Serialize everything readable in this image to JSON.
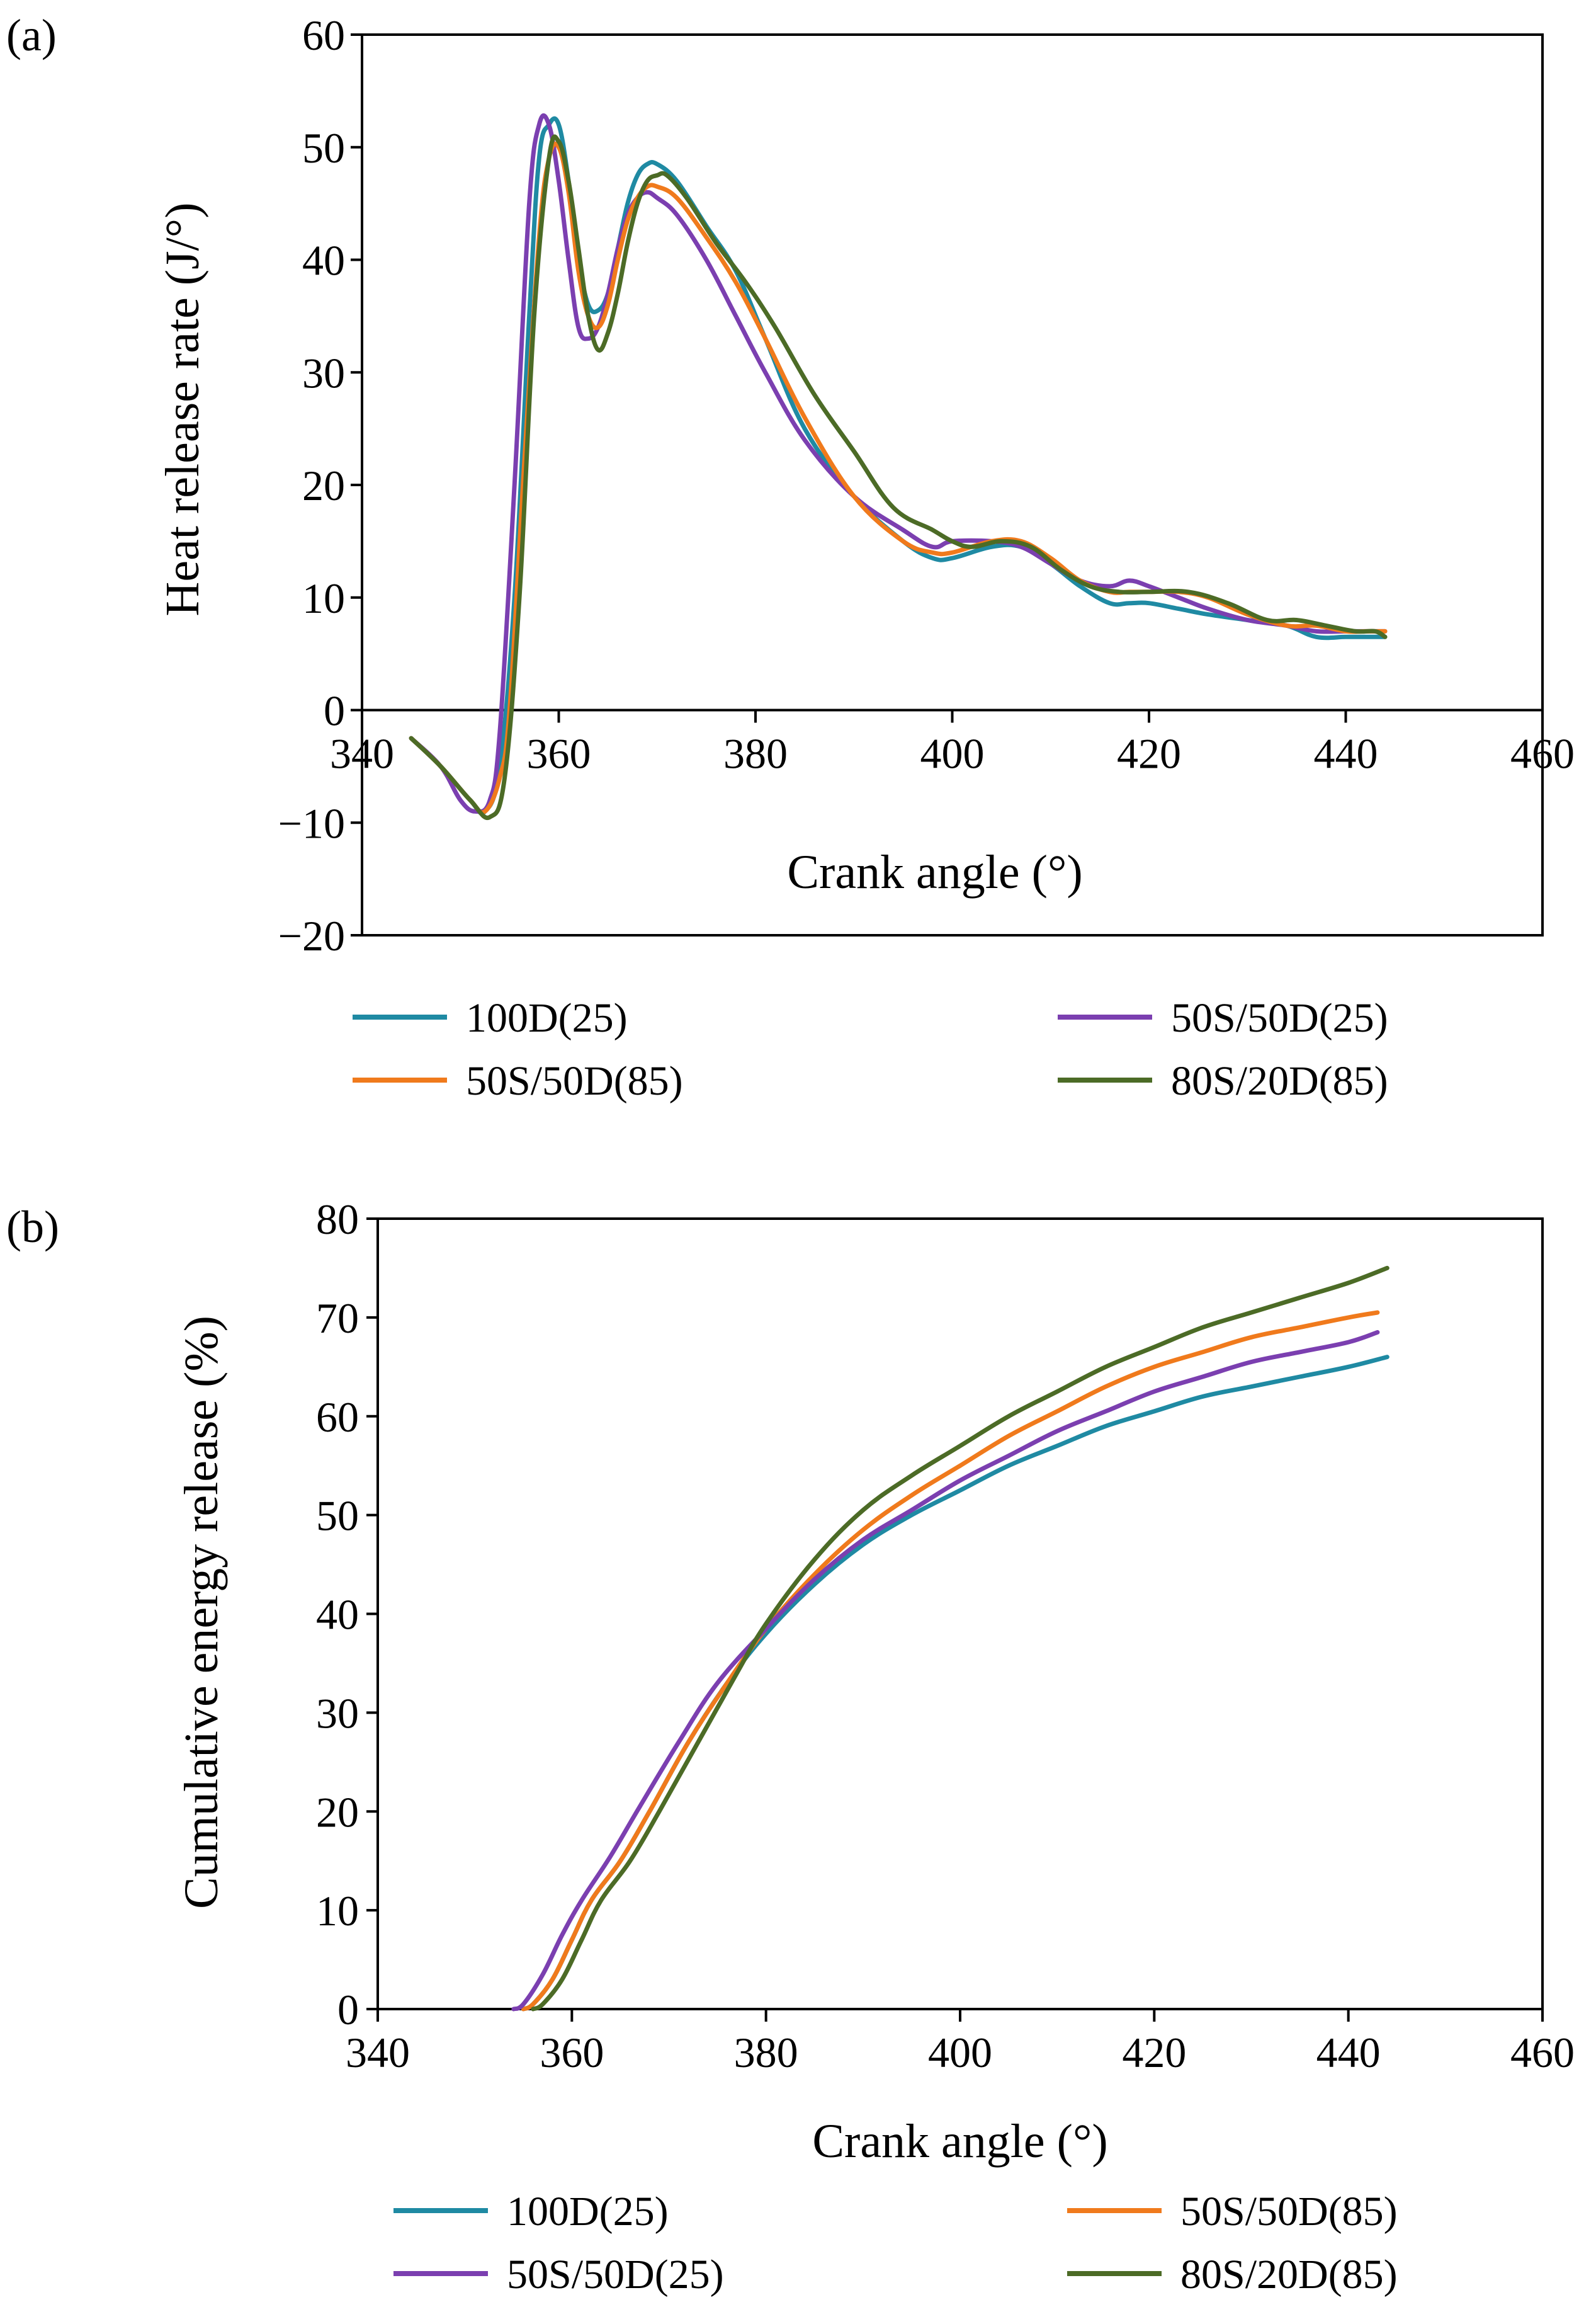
{
  "colors": {
    "100D(25)": "#1f8aa3",
    "50S/50D(25)": "#7b3fb0",
    "50S/50D(85)": "#f07a1c",
    "80S/20D(85)": "#4c6b26"
  },
  "chart_data": [
    {
      "panel_label": "(a)",
      "type": "line",
      "title": "",
      "xlabel": "Crank angle (°)",
      "ylabel": "Heat release rate (J/°)",
      "xlim": [
        340,
        460
      ],
      "ylim": [
        -20,
        60
      ],
      "x_ticks": [
        340,
        360,
        380,
        400,
        420,
        440,
        460
      ],
      "y_ticks": [
        -20,
        -10,
        0,
        10,
        20,
        30,
        40,
        50,
        60
      ],
      "x_tick_labels": [
        "340",
        "360",
        "380",
        "400",
        "420",
        "440",
        "460"
      ],
      "y_tick_labels": [
        "−20",
        "−10",
        "0",
        "10",
        "20",
        "30",
        "40",
        "50",
        "60"
      ],
      "grid": false,
      "legend": {
        "position": "below",
        "entries": [
          "100D(25)",
          "50S/50D(25)",
          "50S/50D(85)",
          "80S/20D(85)"
        ]
      },
      "series": [
        {
          "name": "100D(25)",
          "x": [
            345,
            348,
            351,
            352.5,
            354,
            355.5,
            357,
            358,
            359,
            360,
            361,
            362,
            363,
            364,
            365,
            366,
            367,
            368,
            369,
            370,
            372,
            375,
            378,
            381,
            385,
            390,
            395,
            398,
            400,
            404,
            407,
            410,
            413,
            416,
            418,
            420,
            423,
            426,
            430,
            434,
            437,
            440,
            442,
            444
          ],
          "y": [
            -2.5,
            -5,
            -8,
            -9,
            -5,
            10,
            35,
            49,
            52,
            52,
            47,
            40,
            36,
            35.5,
            37,
            41,
            45,
            47.5,
            48.5,
            48.5,
            47,
            43,
            39,
            33,
            25,
            19,
            15,
            13.5,
            13.5,
            14.5,
            14.5,
            13,
            11,
            9.5,
            9.5,
            9.5,
            9,
            8.5,
            8,
            7.5,
            6.5,
            6.5,
            6.5,
            6.5
          ]
        },
        {
          "name": "50S/50D(25)",
          "x": [
            345,
            348,
            350,
            351.5,
            353,
            354,
            355.5,
            357,
            358,
            359,
            360,
            361,
            362,
            363,
            364,
            365,
            366,
            367,
            368,
            369,
            370,
            372,
            375,
            378,
            381,
            385,
            390,
            395,
            398,
            400,
            404,
            407,
            410,
            413,
            416,
            418,
            420,
            423,
            426,
            430,
            434,
            437,
            440,
            442,
            444
          ],
          "y": [
            -2.5,
            -5,
            -8,
            -9,
            -8,
            -2,
            20,
            45,
            52,
            52,
            47,
            40,
            34,
            33,
            34,
            37,
            41,
            44,
            45.5,
            46,
            45.5,
            44,
            40,
            35,
            30,
            24,
            19,
            16,
            14.5,
            15,
            15,
            14.5,
            13,
            11.5,
            11,
            11.5,
            11,
            10,
            9,
            8,
            7.5,
            7,
            7,
            7,
            7
          ]
        },
        {
          "name": "50S/50D(85)",
          "x": [
            345,
            348,
            351,
            352.5,
            354,
            355,
            356.5,
            358,
            359,
            360,
            361,
            362,
            363,
            364,
            365,
            366,
            367,
            368,
            369,
            370,
            372,
            375,
            378,
            381,
            385,
            390,
            395,
            398,
            400,
            404,
            407,
            410,
            413,
            416,
            418,
            420,
            423,
            426,
            430,
            434,
            437,
            440,
            442,
            444
          ],
          "y": [
            -2.5,
            -5,
            -8,
            -9,
            -6,
            0,
            22,
            42,
            49,
            50,
            46,
            39,
            35,
            34,
            36,
            40,
            43.5,
            45.5,
            46.5,
            46.5,
            45.5,
            42,
            38,
            33,
            26,
            19,
            15,
            14,
            14,
            15,
            15,
            13.5,
            11.5,
            10.5,
            10.5,
            10.5,
            10.5,
            10,
            8.5,
            7.5,
            7.5,
            7,
            7,
            7
          ]
        },
        {
          "name": "80S/20D(85)",
          "x": [
            345,
            348,
            351,
            353,
            354.5,
            356,
            357.5,
            359,
            360,
            361,
            362,
            363,
            364,
            365,
            366,
            367,
            368,
            369,
            370,
            371,
            373,
            376,
            379,
            382,
            386,
            390,
            394,
            398,
            400,
            402,
            405,
            408,
            411,
            414,
            417,
            420,
            424,
            428,
            432,
            435,
            438,
            441,
            443,
            444
          ],
          "y": [
            -2.5,
            -5,
            -8,
            -9.5,
            -6,
            10,
            35,
            49,
            50.5,
            47,
            41,
            35,
            32,
            33.5,
            37,
            41.5,
            45,
            47,
            47.5,
            47.5,
            45.5,
            41.5,
            38,
            34,
            28,
            23,
            18,
            16,
            15,
            14.5,
            15,
            14.5,
            12.5,
            11,
            10.5,
            10.5,
            10.5,
            9.5,
            8,
            8,
            7.5,
            7,
            7,
            6.5
          ]
        }
      ]
    },
    {
      "panel_label": "(b)",
      "type": "line",
      "title": "",
      "xlabel": "Crank angle (°)",
      "ylabel": "Cumulative energy release (%)",
      "xlim": [
        340,
        460
      ],
      "ylim": [
        0,
        80
      ],
      "x_ticks": [
        340,
        360,
        380,
        400,
        420,
        440,
        460
      ],
      "y_ticks": [
        0,
        10,
        20,
        30,
        40,
        50,
        60,
        70,
        80
      ],
      "x_tick_labels": [
        "340",
        "360",
        "380",
        "400",
        "420",
        "440",
        "460"
      ],
      "y_tick_labels": [
        "0",
        "10",
        "20",
        "30",
        "40",
        "50",
        "60",
        "70",
        "80"
      ],
      "grid": false,
      "legend": {
        "position": "below",
        "entries": [
          "100D(25)",
          "50S/50D(85)",
          "50S/50D(25)",
          "80S/20D(85)"
        ]
      },
      "series": [
        {
          "name": "100D(25)",
          "x": [
            355,
            356,
            358,
            360,
            362,
            365,
            368,
            372,
            376,
            380,
            385,
            390,
            395,
            400,
            405,
            410,
            415,
            420,
            425,
            430,
            435,
            440,
            444
          ],
          "y": [
            0,
            0.5,
            3,
            7,
            11,
            15,
            20,
            27,
            33,
            38,
            43,
            47,
            50,
            52.5,
            55,
            57,
            59,
            60.5,
            62,
            63,
            64,
            65,
            66
          ]
        },
        {
          "name": "50S/50D(85)",
          "x": [
            355,
            356,
            358,
            360,
            362,
            365,
            368,
            372,
            376,
            380,
            385,
            390,
            395,
            400,
            405,
            410,
            415,
            420,
            425,
            430,
            435,
            440,
            443
          ],
          "y": [
            0,
            0.5,
            3,
            7,
            11,
            15,
            20,
            27,
            33,
            38.5,
            44,
            48.5,
            52,
            55,
            58,
            60.5,
            63,
            65,
            66.5,
            68,
            69,
            70,
            70.5
          ]
        },
        {
          "name": "50S/50D(25)",
          "x": [
            354,
            355,
            357,
            359,
            361,
            364,
            367,
            371,
            375,
            380,
            385,
            390,
            395,
            400,
            405,
            410,
            415,
            420,
            425,
            430,
            435,
            440,
            443
          ],
          "y": [
            0,
            0.5,
            3.5,
            7.5,
            11,
            15.5,
            20.5,
            27,
            33,
            38.5,
            43.5,
            47.5,
            50.5,
            53.5,
            56,
            58.5,
            60.5,
            62.5,
            64,
            65.5,
            66.5,
            67.5,
            68.5
          ]
        },
        {
          "name": "80S/20D(85)",
          "x": [
            356,
            357,
            359,
            361,
            363,
            366,
            369,
            373,
            377,
            380,
            385,
            390,
            395,
            400,
            405,
            410,
            415,
            420,
            425,
            430,
            435,
            440,
            444
          ],
          "y": [
            0,
            0.5,
            3,
            7,
            11,
            15,
            20,
            27,
            34,
            39,
            45.5,
            50.5,
            54,
            57,
            60,
            62.5,
            65,
            67,
            69,
            70.5,
            72,
            73.5,
            75
          ]
        }
      ]
    }
  ]
}
